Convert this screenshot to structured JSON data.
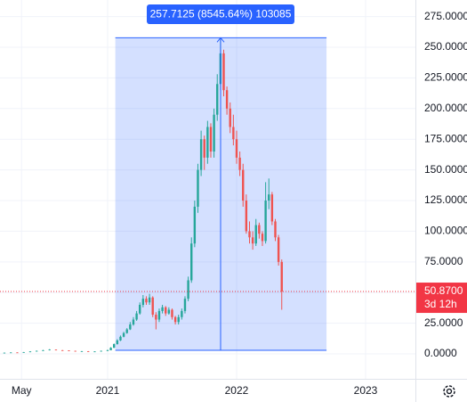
{
  "chart_data": {
    "type": "candlestick",
    "up_color": "#26a69a",
    "down_color": "#ef5350",
    "xlim": [
      2020.166,
      2023.386
    ],
    "ylim": [
      -20.3,
      288.5
    ],
    "xticks": [
      {
        "value": 2020.333,
        "label": "May"
      },
      2021,
      2022,
      2023
    ],
    "yticks": [
      {
        "value": 0,
        "label": "0.0000"
      },
      {
        "value": 25,
        "label": "25.0000"
      },
      {
        "value": 50,
        "label": "50.0000"
      },
      {
        "value": 75,
        "label": "75.0000"
      },
      {
        "value": 100,
        "label": "100.0000"
      },
      {
        "value": 125,
        "label": "125.0000"
      },
      {
        "value": 150,
        "label": "150.0000"
      },
      {
        "value": 175,
        "label": "175.0000"
      },
      {
        "value": 200,
        "label": "200.0000"
      },
      {
        "value": 225,
        "label": "225.0000"
      },
      {
        "value": 250,
        "label": "250.0000"
      },
      {
        "value": 275,
        "label": "275.0000"
      }
    ],
    "grid": true,
    "x": [
      2020.2,
      2020.25,
      2020.3,
      2020.35,
      2020.4,
      2020.45,
      2020.5,
      2020.55,
      2020.6,
      2020.65,
      2020.7,
      2020.75,
      2020.8,
      2020.85,
      2020.9,
      2020.95,
      2021.0,
      2021.025,
      2021.05,
      2021.075,
      2021.1,
      2021.125,
      2021.15,
      2021.175,
      2021.2,
      2021.225,
      2021.25,
      2021.275,
      2021.3,
      2021.325,
      2021.35,
      2021.375,
      2021.4,
      2021.425,
      2021.45,
      2021.475,
      2021.5,
      2021.525,
      2021.55,
      2021.575,
      2021.6,
      2021.625,
      2021.65,
      2021.675,
      2021.7,
      2021.725,
      2021.75,
      2021.775,
      2021.8,
      2021.825,
      2021.85,
      2021.875,
      2021.9,
      2021.925,
      2021.95,
      2021.975,
      2022.0,
      2022.025,
      2022.05,
      2022.075,
      2022.1,
      2022.125,
      2022.15,
      2022.175,
      2022.2,
      2022.225,
      2022.25,
      2022.275,
      2022.3,
      2022.325,
      2022.35
    ],
    "open": [
      0.8,
      1,
      1.2,
      1.1,
      1.5,
      2,
      2.5,
      3,
      3.5,
      3,
      2.8,
      2.5,
      2,
      2.2,
      1.8,
      2,
      2.5,
      3,
      5,
      8,
      11,
      14,
      17,
      20,
      24,
      28,
      33,
      40,
      45,
      42,
      46,
      32,
      28,
      35,
      38,
      33,
      36,
      30,
      26,
      30,
      35,
      45,
      60,
      90,
      120,
      150,
      175,
      160,
      185,
      165,
      195,
      220,
      245,
      215,
      200,
      185,
      175,
      160,
      150,
      125,
      100,
      95,
      90,
      105,
      98,
      92,
      125,
      130,
      108,
      95,
      75
    ],
    "high": [
      1.1,
      1.3,
      1.3,
      1.6,
      2.2,
      2.7,
      3.3,
      3.9,
      3.6,
      3.2,
      2.9,
      2.6,
      2.4,
      2.3,
      2.1,
      2.7,
      3.5,
      5.5,
      8.5,
      12,
      15,
      18,
      21,
      26,
      30,
      35,
      42,
      48,
      47,
      49,
      47,
      34,
      37,
      40,
      39,
      38,
      37,
      31,
      32,
      37,
      47,
      63,
      95,
      125,
      155,
      182,
      178,
      190,
      188,
      200,
      228,
      257.7125,
      248,
      218,
      205,
      195,
      182,
      165,
      155,
      130,
      108,
      100,
      110,
      107,
      100,
      140,
      143,
      132,
      110,
      97,
      77
    ],
    "low": [
      0.7,
      0.9,
      1,
      1,
      1.4,
      1.9,
      2.4,
      2.9,
      2.9,
      2.7,
      2.4,
      1.9,
      1.9,
      1.7,
      1.7,
      1.9,
      2.4,
      2.981,
      4.8,
      7.6,
      10.5,
      13.5,
      16.5,
      19.5,
      23,
      27,
      32,
      38,
      40,
      40,
      30,
      20,
      26,
      33,
      31,
      32,
      28,
      24,
      24,
      28,
      33,
      43,
      58,
      87,
      115,
      145,
      150,
      155,
      160,
      160,
      190,
      215,
      210,
      195,
      180,
      170,
      155,
      145,
      120,
      98,
      90,
      85,
      88,
      94,
      88,
      90,
      118,
      105,
      92,
      72,
      36
    ],
    "close": [
      1,
      1.2,
      1.1,
      1.5,
      2,
      2.5,
      3,
      3.5,
      3,
      2.8,
      2.5,
      2,
      2.2,
      1.8,
      2,
      2.5,
      3,
      5,
      8,
      11,
      14,
      17,
      20,
      24,
      28,
      33,
      40,
      45,
      42,
      46,
      32,
      28,
      35,
      38,
      33,
      36,
      30,
      26,
      30,
      35,
      45,
      60,
      90,
      120,
      150,
      175,
      160,
      185,
      165,
      195,
      220,
      245,
      215,
      200,
      185,
      175,
      160,
      150,
      125,
      100,
      95,
      90,
      105,
      98,
      92,
      125,
      130,
      108,
      95,
      75,
      50.87
    ],
    "measure": {
      "label": "257.7125 (8545.64%) 103085",
      "from": 2.981,
      "to": 257.7125,
      "x_from": 2021.06,
      "x_to": 2022.697,
      "x_peak": 2021.876,
      "color": "#2962ff"
    },
    "last_price": {
      "value": 50.87,
      "label": "50.8700",
      "countdown": "3d 12h",
      "color": "#f23645"
    }
  }
}
